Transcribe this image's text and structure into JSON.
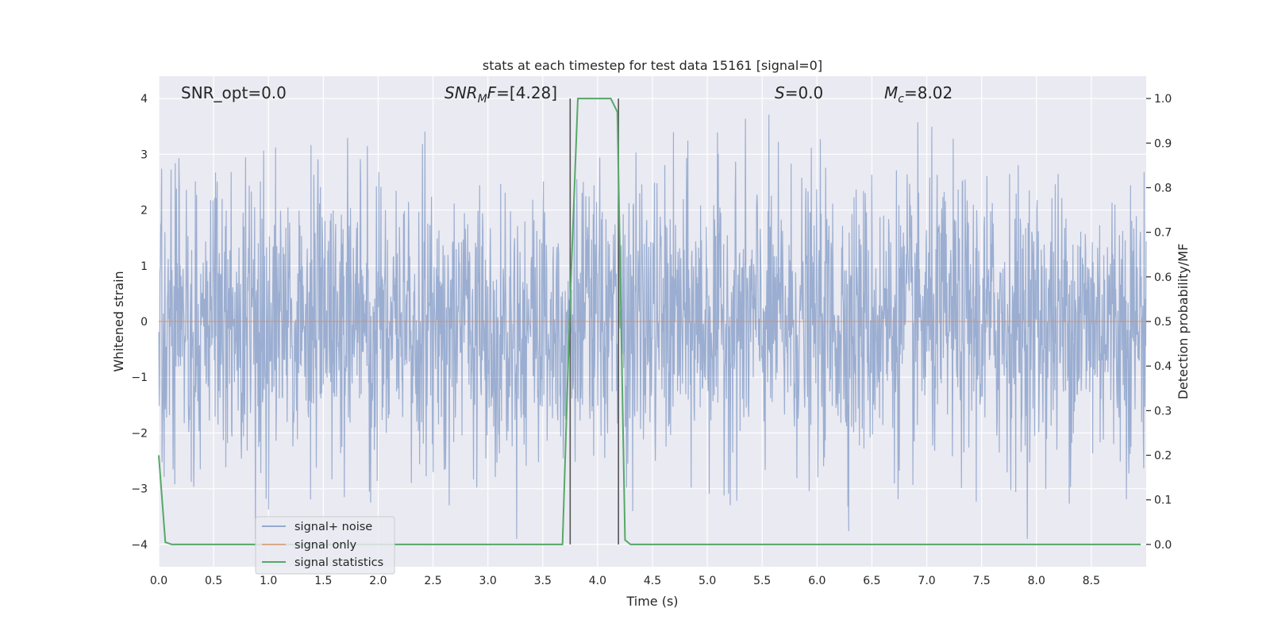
{
  "chart_data": {
    "type": "line",
    "title": "stats at each timestep for test data 15161 [signal=0]",
    "xlabel": "Time (s)",
    "ylabel_left": "Whitened strain",
    "ylabel_right": "Detection probability/MF",
    "xlim": [
      0.0,
      9.0
    ],
    "ylim_left": [
      -4.4,
      4.4
    ],
    "ylim_right": [
      -0.05,
      1.05
    ],
    "x_ticks": [
      "0.0",
      "0.5",
      "1.0",
      "1.5",
      "2.0",
      "2.5",
      "3.0",
      "3.5",
      "4.0",
      "4.5",
      "5.0",
      "5.5",
      "6.0",
      "6.5",
      "7.0",
      "7.5",
      "8.0",
      "8.5"
    ],
    "x_tick_values": [
      0.0,
      0.5,
      1.0,
      1.5,
      2.0,
      2.5,
      3.0,
      3.5,
      4.0,
      4.5,
      5.0,
      5.5,
      6.0,
      6.5,
      7.0,
      7.5,
      8.0,
      8.5
    ],
    "y_ticks_left": [
      "−4",
      "−3",
      "−2",
      "−1",
      "0",
      "1",
      "2",
      "3",
      "4"
    ],
    "y_tick_values_left": [
      -4,
      -3,
      -2,
      -1,
      0,
      1,
      2,
      3,
      4
    ],
    "y_ticks_right": [
      "0.0",
      "0.1",
      "0.2",
      "0.3",
      "0.4",
      "0.5",
      "0.6",
      "0.7",
      "0.8",
      "0.9",
      "1.0"
    ],
    "y_tick_values_right": [
      0.0,
      0.1,
      0.2,
      0.3,
      0.4,
      0.5,
      0.6,
      0.7,
      0.8,
      0.9,
      1.0
    ],
    "grid": true,
    "legend_position": "lower-left",
    "series": [
      {
        "name": "signal+ noise",
        "axis": "left",
        "color": "#4c72b0",
        "note_style": "dense whitened noise trace, roughly Gaussian, spanning about -4 to +4",
        "x_range": [
          0.0,
          9.0
        ],
        "amplitude_envelope": [
          -3.9,
          4.0
        ]
      },
      {
        "name": "signal only",
        "axis": "left",
        "color": "#dd8452",
        "x": [
          0.0,
          9.0
        ],
        "y": [
          0.0,
          0.0
        ]
      },
      {
        "name": "signal statistics",
        "axis": "right",
        "color": "#55a868",
        "x": [
          0.0,
          0.06,
          0.12,
          3.68,
          3.75,
          3.82,
          4.12,
          4.18,
          4.25,
          4.3,
          8.95
        ],
        "y": [
          0.2,
          0.005,
          0.0,
          0.0,
          0.55,
          1.0,
          1.0,
          0.97,
          0.01,
          0.0,
          0.0
        ]
      }
    ],
    "vlines": [
      {
        "x": 3.75,
        "color": "#555555"
      },
      {
        "x": 4.19,
        "color": "#555555"
      }
    ],
    "annotations": [
      {
        "id": "snr-opt",
        "text": "SNR_opt=0.0"
      },
      {
        "id": "snr-mf",
        "text_main": "SNR",
        "text_sub": "M",
        "text_rest": "F=[4.28]"
      },
      {
        "id": "s-val",
        "text_main": "S",
        "text_rest": "=0.0"
      },
      {
        "id": "mc-val",
        "text_main": "M",
        "text_sub": "c",
        "text_rest": "=8.02"
      }
    ],
    "colors": {
      "plot_background": "#eaeaf2",
      "grid": "#ffffff",
      "noise": "#4c72b0",
      "signal_only": "#dd8452",
      "statistics": "#55a868"
    }
  }
}
